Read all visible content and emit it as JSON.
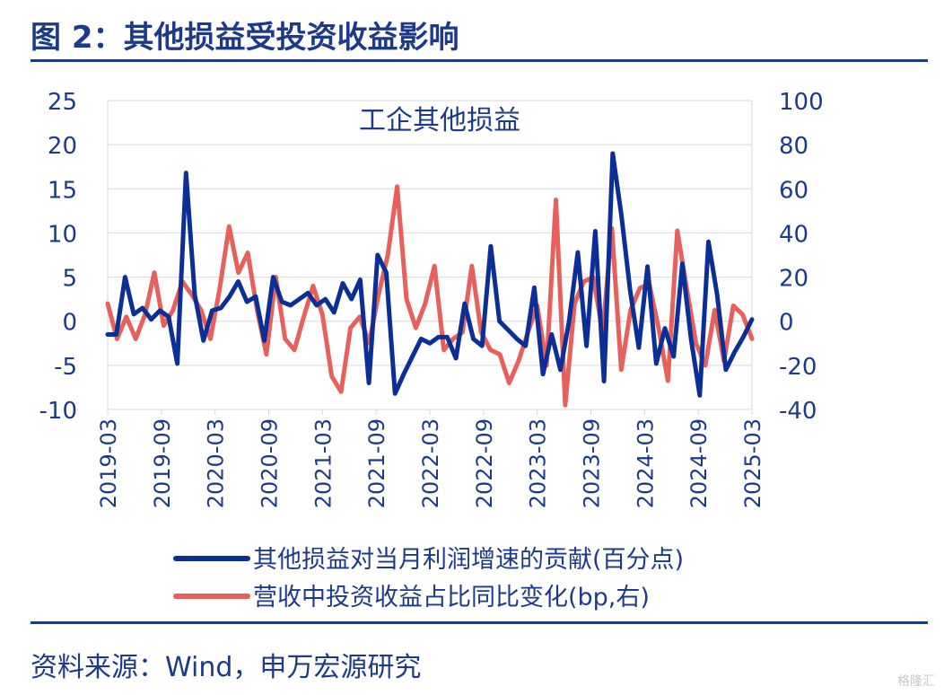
{
  "figure": {
    "title": "图 2：其他损益受投资收益影响",
    "source": "资料来源：Wind，申万宏源研究",
    "watermark": "格隆汇"
  },
  "chart_data": {
    "type": "line",
    "title": "工企其他损益",
    "colors": {
      "series1": "#0b2f96",
      "series2": "#e8605b",
      "axis": "#1d3a8a",
      "grid": "#d9d9d9"
    },
    "x_tick_labels": [
      "2019-03",
      "2019-09",
      "2020-03",
      "2020-09",
      "2021-03",
      "2021-09",
      "2022-03",
      "2022-09",
      "2023-03",
      "2023-09",
      "2024-03",
      "2024-09",
      "2025-03"
    ],
    "y_left": {
      "min": -10,
      "max": 25,
      "ticks": [
        -10,
        -5,
        0,
        5,
        10,
        15,
        20,
        25
      ]
    },
    "y_right": {
      "min": -40,
      "max": 100,
      "ticks": [
        -40,
        -20,
        0,
        20,
        40,
        60,
        80,
        100
      ]
    },
    "series": [
      {
        "name": "其他损益对当月利润增速的贡献(百分点)",
        "axis": "left",
        "values": [
          -1.5,
          -1.5,
          5,
          0.8,
          1.5,
          0.2,
          1.2,
          0.5,
          -4.8,
          16.8,
          3,
          -2.2,
          1.2,
          1.5,
          2.8,
          4.5,
          2.2,
          2.8,
          -2.2,
          5,
          2.2,
          1.8,
          2.5,
          3.2,
          1.8,
          2.5,
          1,
          4.3,
          2.5,
          4.7,
          -7,
          7.5,
          5.5,
          -8.2,
          -6,
          -4,
          -2,
          -2.5,
          -1.8,
          -1.8,
          -4.2,
          2,
          -2,
          -2.8,
          8.5,
          0,
          -1,
          -2,
          -2.8,
          3.8,
          -6,
          -1.5,
          -5.5,
          0,
          7.8,
          -2.8,
          10.2,
          -6.8,
          19,
          12,
          3.5,
          -3,
          6.2,
          -4.8,
          -0.8,
          -4,
          6.5,
          -2,
          -8.4,
          9,
          3,
          -5.5,
          -3.5,
          -1.8,
          0.2
        ]
      },
      {
        "name": "营收中投资收益占比同比变化(bp,右)",
        "axis": "right",
        "values": [
          8,
          -8,
          2,
          -8,
          3,
          22,
          -2,
          5,
          18,
          12,
          5,
          -8,
          15,
          43,
          22,
          31,
          5,
          -15,
          20,
          -8,
          -13,
          2,
          16,
          3,
          -25,
          -32,
          -3,
          2,
          -10,
          12,
          30,
          61,
          10,
          -3,
          8,
          25,
          -13,
          -8,
          -5,
          25,
          -5,
          -13,
          -15,
          -28,
          -18,
          -5,
          7,
          -20,
          55,
          -38,
          8,
          18,
          20,
          -5,
          42,
          -22,
          5,
          15,
          17,
          -3,
          -27,
          41,
          15,
          -10,
          -20,
          5,
          -18,
          7,
          3,
          -8
        ]
      }
    ],
    "legend": "bottom"
  }
}
